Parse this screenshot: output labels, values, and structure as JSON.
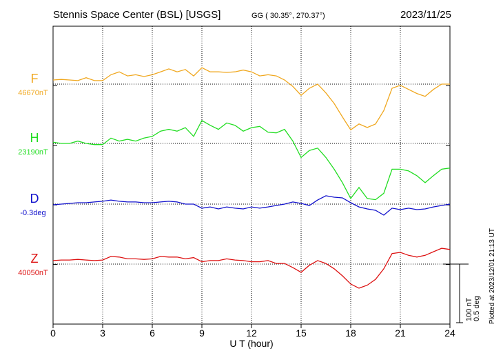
{
  "chart_data": {
    "type": "line",
    "title": "Stennis Space Center (BSL)  [USGS]",
    "subtitle": "GG ( 30.35°, 270.37°)",
    "date": "2023/11/25",
    "x_label": "U T (hour)",
    "footnote": "Plotted at 2023/12/01 21:13 UT",
    "xlim": [
      0,
      24
    ],
    "xticks": [
      0,
      3,
      6,
      9,
      12,
      15,
      18,
      21,
      24
    ],
    "grid": true,
    "scale_bar": [
      {
        "value": 100,
        "label": "100 nT"
      },
      {
        "value": 0.5,
        "label": "0.5 deg"
      }
    ],
    "x": [
      0,
      0.5,
      1,
      1.5,
      2,
      2.5,
      3,
      3.5,
      4,
      4.5,
      5,
      5.5,
      6,
      6.5,
      7,
      7.5,
      8,
      8.5,
      9,
      9.5,
      10,
      10.5,
      11,
      11.5,
      12,
      12.5,
      13,
      13.5,
      14,
      14.5,
      15,
      15.5,
      16,
      16.5,
      17,
      17.5,
      18,
      18.5,
      19,
      19.5,
      20,
      20.5,
      21,
      21.5,
      22,
      22.5,
      23,
      23.5,
      24
    ],
    "series": [
      {
        "name": "F",
        "color": "#f0a820",
        "baseline": {
          "value": 46670,
          "label": "46670nT"
        },
        "values": [
          46677,
          46678,
          46677,
          46676,
          46681,
          46676,
          46676,
          46686,
          46691,
          46684,
          46686,
          46683,
          46686,
          46691,
          46696,
          46691,
          46695,
          46684,
          46698,
          46691,
          46691,
          46690,
          46691,
          46694,
          46691,
          46684,
          46686,
          46684,
          46677,
          46666,
          46651,
          46663,
          46670,
          46655,
          46637,
          46614,
          46592,
          46602,
          46596,
          46602,
          46625,
          46663,
          46668,
          46661,
          46654,
          46649,
          46661,
          46670,
          46670
        ]
      },
      {
        "name": "H",
        "color": "#22dd22",
        "baseline": {
          "value": 23190,
          "label": "23190nT"
        },
        "values": [
          23192,
          23190,
          23190,
          23194,
          23190,
          23188,
          23188,
          23199,
          23194,
          23197,
          23194,
          23199,
          23202,
          23211,
          23214,
          23211,
          23217,
          23202,
          23229,
          23221,
          23214,
          23225,
          23221,
          23211,
          23217,
          23219,
          23209,
          23208,
          23214,
          23194,
          23166,
          23178,
          23182,
          23166,
          23146,
          23123,
          23096,
          23115,
          23096,
          23094,
          23105,
          23146,
          23146,
          23143,
          23135,
          23123,
          23135,
          23146,
          23148
        ]
      },
      {
        "name": "D",
        "color": "#1010cc",
        "baseline": {
          "value": -0.3,
          "label": "-0.3deg"
        },
        "values": [
          -0.306,
          -0.3,
          -0.294,
          -0.288,
          -0.288,
          -0.282,
          -0.276,
          -0.265,
          -0.276,
          -0.282,
          -0.282,
          -0.288,
          -0.288,
          -0.282,
          -0.276,
          -0.282,
          -0.3,
          -0.3,
          -0.335,
          -0.324,
          -0.341,
          -0.324,
          -0.335,
          -0.341,
          -0.324,
          -0.335,
          -0.324,
          -0.312,
          -0.3,
          -0.282,
          -0.294,
          -0.312,
          -0.265,
          -0.229,
          -0.241,
          -0.247,
          -0.288,
          -0.324,
          -0.341,
          -0.353,
          -0.394,
          -0.335,
          -0.347,
          -0.335,
          -0.347,
          -0.341,
          -0.324,
          -0.312,
          -0.3
        ]
      },
      {
        "name": "Z",
        "color": "#dd1111",
        "baseline": {
          "value": 40050,
          "label": "40050nT"
        },
        "values": [
          40056,
          40057,
          40057,
          40058,
          40057,
          40056,
          40057,
          40063,
          40062,
          40059,
          40059,
          40058,
          40059,
          40063,
          40062,
          40062,
          40059,
          40061,
          40054,
          40056,
          40056,
          40059,
          40057,
          40056,
          40054,
          40054,
          40056,
          40051,
          40051,
          40044,
          40036,
          40048,
          40056,
          40051,
          40042,
          40030,
          40016,
          40009,
          40014,
          40024,
          40042,
          40068,
          40070,
          40065,
          40062,
          40065,
          40071,
          40077,
          40075
        ]
      }
    ]
  }
}
